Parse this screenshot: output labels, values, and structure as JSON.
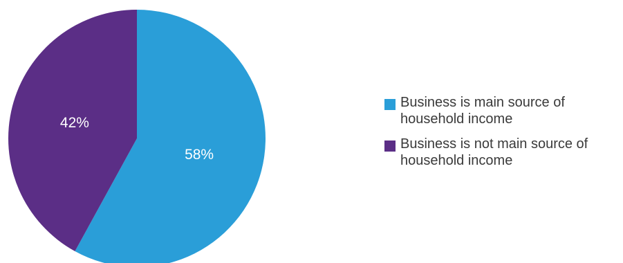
{
  "chart_data": {
    "type": "pie",
    "title": "",
    "categories": [
      "Business is main source of household income",
      "Business is not main source of household income"
    ],
    "values": [
      58,
      42
    ],
    "labels": [
      "58%",
      "42%"
    ],
    "colors": [
      "#2A9ED8",
      "#5B2E86"
    ],
    "start_angle_deg": 0,
    "direction": "clockwise",
    "legend_position": "right"
  },
  "legend": {
    "items": [
      {
        "label": "Business is main source of household income",
        "color": "#2A9ED8"
      },
      {
        "label": "Business is not main source of household income",
        "color": "#5B2E86"
      }
    ]
  }
}
